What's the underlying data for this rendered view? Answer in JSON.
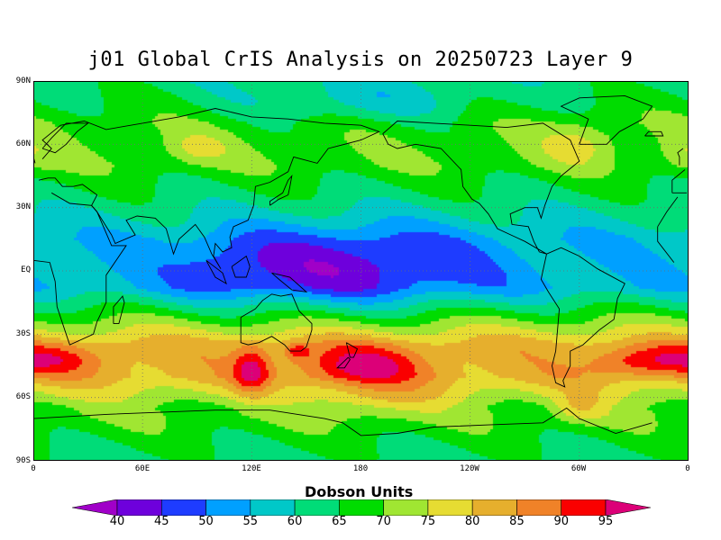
{
  "title": "j01 Global CrIS Analysis on 20250723 Layer 9",
  "lat_axis": {
    "labels": [
      "90N",
      "60N",
      "30N",
      "EQ",
      "30S",
      "60S",
      "90S"
    ],
    "values": [
      90,
      60,
      30,
      0,
      -30,
      -60,
      -90
    ]
  },
  "lon_axis": {
    "labels": [
      "0",
      "60E",
      "120E",
      "180",
      "120W",
      "60W",
      "0"
    ],
    "values": [
      0,
      60,
      120,
      180,
      240,
      300,
      360
    ]
  },
  "colorbar": {
    "title": "Dobson Units",
    "levels": [
      40,
      45,
      50,
      55,
      60,
      65,
      70,
      75,
      80,
      85,
      90,
      95
    ],
    "level_labels": [
      "40",
      "45",
      "50",
      "55",
      "60",
      "65",
      "70",
      "75",
      "80",
      "85",
      "90",
      "95"
    ],
    "colors": [
      "#a000c8",
      "#6e00dc",
      "#1e3cff",
      "#00a0ff",
      "#00c8c8",
      "#00dc78",
      "#00dc00",
      "#a0e632",
      "#e6dc32",
      "#e6af2d",
      "#f08228",
      "#fa0000",
      "#dc0078"
    ]
  },
  "field_features": [
    {
      "lat": 0,
      "lon": 150,
      "value": 40
    },
    {
      "lat": -45,
      "lon": 180,
      "value": 95
    },
    {
      "lat": -45,
      "lon": 120,
      "value": 95
    },
    {
      "lat": -45,
      "lon": 10,
      "value": 90
    },
    {
      "lat": -45,
      "lon": 330,
      "value": 90
    },
    {
      "lat": 60,
      "lon": 300,
      "value": 75
    },
    {
      "lat": 60,
      "lon": 90,
      "value": 75
    },
    {
      "lat": 85,
      "lon": 180,
      "value": 60
    }
  ]
}
